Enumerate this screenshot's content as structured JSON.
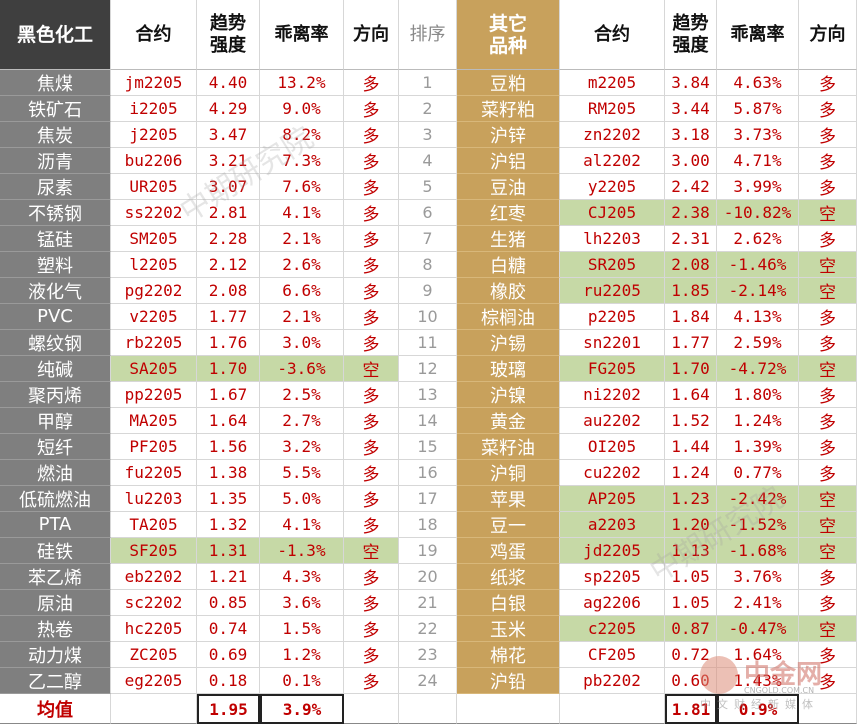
{
  "header": {
    "left_category": "黑色化工",
    "contract": "合约",
    "trend_strength": "趋势\n强度",
    "deviation": "乖离率",
    "direction": "方向",
    "rank": "排序",
    "right_category": "其它\n品种",
    "contract_r": "合约",
    "trend_strength_r": "趋势\n强度",
    "deviation_r": "乖离率",
    "direction_r": "方向"
  },
  "colors": {
    "short_fill": "#c6d9a6",
    "left_category_fill": "#7f7f7f",
    "right_category_fill": "#c8a15c",
    "value_text": "#c00000"
  },
  "rows": [
    {
      "rank": "1",
      "l": {
        "name": "焦煤",
        "code": "jm2205",
        "strength": "4.40",
        "dev": "13.2%",
        "dir": "多"
      },
      "r": {
        "name": "豆粕",
        "code": "m2205",
        "strength": "3.84",
        "dev": "4.63%",
        "dir": "多"
      }
    },
    {
      "rank": "2",
      "l": {
        "name": "铁矿石",
        "code": "i2205",
        "strength": "4.29",
        "dev": "9.0%",
        "dir": "多"
      },
      "r": {
        "name": "菜籽粕",
        "code": "RM205",
        "strength": "3.44",
        "dev": "5.87%",
        "dir": "多"
      }
    },
    {
      "rank": "3",
      "l": {
        "name": "焦炭",
        "code": "j2205",
        "strength": "3.47",
        "dev": "8.2%",
        "dir": "多"
      },
      "r": {
        "name": "沪锌",
        "code": "zn2202",
        "strength": "3.18",
        "dev": "3.73%",
        "dir": "多"
      }
    },
    {
      "rank": "4",
      "l": {
        "name": "沥青",
        "code": "bu2206",
        "strength": "3.21",
        "dev": "7.3%",
        "dir": "多"
      },
      "r": {
        "name": "沪铝",
        "code": "al2202",
        "strength": "3.00",
        "dev": "4.71%",
        "dir": "多"
      }
    },
    {
      "rank": "5",
      "l": {
        "name": "尿素",
        "code": "UR205",
        "strength": "3.07",
        "dev": "7.6%",
        "dir": "多"
      },
      "r": {
        "name": "豆油",
        "code": "y2205",
        "strength": "2.42",
        "dev": "3.99%",
        "dir": "多"
      }
    },
    {
      "rank": "6",
      "l": {
        "name": "不锈钢",
        "code": "ss2202",
        "strength": "2.81",
        "dev": "4.1%",
        "dir": "多"
      },
      "r": {
        "name": "红枣",
        "code": "CJ205",
        "strength": "2.38",
        "dev": "-10.82%",
        "dir": "空",
        "short": true
      }
    },
    {
      "rank": "7",
      "l": {
        "name": "锰硅",
        "code": "SM205",
        "strength": "2.28",
        "dev": "2.1%",
        "dir": "多"
      },
      "r": {
        "name": "生猪",
        "code": "lh2203",
        "strength": "2.31",
        "dev": "2.62%",
        "dir": "多"
      }
    },
    {
      "rank": "8",
      "l": {
        "name": "塑料",
        "code": "l2205",
        "strength": "2.12",
        "dev": "2.6%",
        "dir": "多"
      },
      "r": {
        "name": "白糖",
        "code": "SR205",
        "strength": "2.08",
        "dev": "-1.46%",
        "dir": "空",
        "short": true
      }
    },
    {
      "rank": "9",
      "l": {
        "name": "液化气",
        "code": "pg2202",
        "strength": "2.08",
        "dev": "6.6%",
        "dir": "多"
      },
      "r": {
        "name": "橡胶",
        "code": "ru2205",
        "strength": "1.85",
        "dev": "-2.14%",
        "dir": "空",
        "short": true
      }
    },
    {
      "rank": "10",
      "l": {
        "name": "PVC",
        "code": "v2205",
        "strength": "1.77",
        "dev": "2.1%",
        "dir": "多"
      },
      "r": {
        "name": "棕榈油",
        "code": "p2205",
        "strength": "1.84",
        "dev": "4.13%",
        "dir": "多"
      }
    },
    {
      "rank": "11",
      "l": {
        "name": "螺纹钢",
        "code": "rb2205",
        "strength": "1.76",
        "dev": "3.0%",
        "dir": "多"
      },
      "r": {
        "name": "沪锡",
        "code": "sn2201",
        "strength": "1.77",
        "dev": "2.59%",
        "dir": "多"
      }
    },
    {
      "rank": "12",
      "l": {
        "name": "纯碱",
        "code": "SA205",
        "strength": "1.70",
        "dev": "-3.6%",
        "dir": "空",
        "short": true
      },
      "r": {
        "name": "玻璃",
        "code": "FG205",
        "strength": "1.70",
        "dev": "-4.72%",
        "dir": "空",
        "short": true
      }
    },
    {
      "rank": "13",
      "l": {
        "name": "聚丙烯",
        "code": "pp2205",
        "strength": "1.67",
        "dev": "2.5%",
        "dir": "多"
      },
      "r": {
        "name": "沪镍",
        "code": "ni2202",
        "strength": "1.64",
        "dev": "1.80%",
        "dir": "多"
      }
    },
    {
      "rank": "14",
      "l": {
        "name": "甲醇",
        "code": "MA205",
        "strength": "1.64",
        "dev": "2.7%",
        "dir": "多"
      },
      "r": {
        "name": "黄金",
        "code": "au2202",
        "strength": "1.52",
        "dev": "1.24%",
        "dir": "多"
      }
    },
    {
      "rank": "15",
      "l": {
        "name": "短纤",
        "code": "PF205",
        "strength": "1.56",
        "dev": "3.2%",
        "dir": "多"
      },
      "r": {
        "name": "菜籽油",
        "code": "OI205",
        "strength": "1.44",
        "dev": "1.39%",
        "dir": "多"
      }
    },
    {
      "rank": "16",
      "l": {
        "name": "燃油",
        "code": "fu2205",
        "strength": "1.38",
        "dev": "5.5%",
        "dir": "多"
      },
      "r": {
        "name": "沪铜",
        "code": "cu2202",
        "strength": "1.24",
        "dev": "0.77%",
        "dir": "多"
      }
    },
    {
      "rank": "17",
      "l": {
        "name": "低硫燃油",
        "code": "lu2203",
        "strength": "1.35",
        "dev": "5.0%",
        "dir": "多"
      },
      "r": {
        "name": "苹果",
        "code": "AP205",
        "strength": "1.23",
        "dev": "-2.42%",
        "dir": "空",
        "short": true
      }
    },
    {
      "rank": "18",
      "l": {
        "name": "PTA",
        "code": "TA205",
        "strength": "1.32",
        "dev": "4.1%",
        "dir": "多"
      },
      "r": {
        "name": "豆一",
        "code": "a2203",
        "strength": "1.20",
        "dev": "-1.52%",
        "dir": "空",
        "short": true
      }
    },
    {
      "rank": "19",
      "l": {
        "name": "硅铁",
        "code": "SF205",
        "strength": "1.31",
        "dev": "-1.3%",
        "dir": "空",
        "short": true
      },
      "r": {
        "name": "鸡蛋",
        "code": "jd2205",
        "strength": "1.13",
        "dev": "-1.68%",
        "dir": "空",
        "short": true
      }
    },
    {
      "rank": "20",
      "l": {
        "name": "苯乙烯",
        "code": "eb2202",
        "strength": "1.21",
        "dev": "4.3%",
        "dir": "多"
      },
      "r": {
        "name": "纸浆",
        "code": "sp2205",
        "strength": "1.05",
        "dev": "3.76%",
        "dir": "多"
      }
    },
    {
      "rank": "21",
      "l": {
        "name": "原油",
        "code": "sc2202",
        "strength": "0.85",
        "dev": "3.6%",
        "dir": "多"
      },
      "r": {
        "name": "白银",
        "code": "ag2206",
        "strength": "1.05",
        "dev": "2.41%",
        "dir": "多"
      }
    },
    {
      "rank": "22",
      "l": {
        "name": "热卷",
        "code": "hc2205",
        "strength": "0.74",
        "dev": "1.5%",
        "dir": "多"
      },
      "r": {
        "name": "玉米",
        "code": "c2205",
        "strength": "0.87",
        "dev": "-0.47%",
        "dir": "空",
        "short": true
      }
    },
    {
      "rank": "23",
      "l": {
        "name": "动力煤",
        "code": "ZC205",
        "strength": "0.69",
        "dev": "1.2%",
        "dir": "多"
      },
      "r": {
        "name": "棉花",
        "code": "CF205",
        "strength": "0.72",
        "dev": "1.64%",
        "dir": "多"
      }
    },
    {
      "rank": "24",
      "l": {
        "name": "乙二醇",
        "code": "eg2205",
        "strength": "0.18",
        "dev": "0.1%",
        "dir": "多"
      },
      "r": {
        "name": "沪铅",
        "code": "pb2202",
        "strength": "0.60",
        "dev": "1.43%",
        "dir": "多"
      }
    }
  ],
  "footer": {
    "label": "均值",
    "left_strength": "1.95",
    "left_dev": "3.9%",
    "right_strength": "1.81",
    "right_dev": "0.9%"
  },
  "watermark": {
    "text": "中期研究院",
    "logo_name": "中金网",
    "logo_url": "CNGOLD.COM.CN",
    "logo_sub": "中文财经新媒体"
  }
}
